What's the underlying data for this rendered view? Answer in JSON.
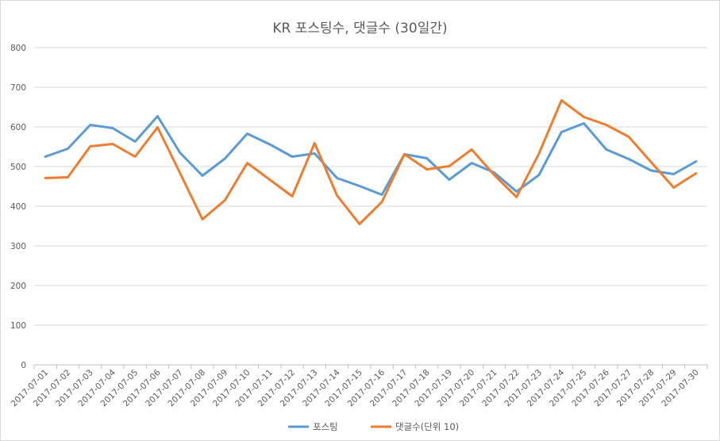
{
  "chart_data": {
    "type": "line",
    "title": "KR 포스팅수, 댓글수 (30일간)",
    "ylim": [
      0,
      800
    ],
    "yticks": [
      0,
      100,
      200,
      300,
      400,
      500,
      600,
      700,
      800
    ],
    "grid": true,
    "legend_position": "bottom",
    "categories": [
      "2017-07-01",
      "2017-07-02",
      "2017-07-03",
      "2017-07-04",
      "2017-07-05",
      "2017-07-06",
      "2017-07-07",
      "2017-07-08",
      "2017-07-09",
      "2017-07-10",
      "2017-07-11",
      "2017-07-12",
      "2017-07-13",
      "2017-07-14",
      "2017-07-15",
      "2017-07-16",
      "2017-07-17",
      "2017-07-18",
      "2017-07-19",
      "2017-07-20",
      "2017-07-21",
      "2017-07-22",
      "2017-07-23",
      "2017-07-24",
      "2017-07-25",
      "2017-07-26",
      "2017-07-27",
      "2017-07-28",
      "2017-07-29",
      "2017-07-30"
    ],
    "series": [
      {
        "name": "포스팅",
        "color": "#5b9bd5",
        "values": [
          525,
          545,
          605,
          597,
          563,
          627,
          535,
          477,
          520,
          583,
          556,
          525,
          533,
          471,
          451,
          429,
          531,
          521,
          467,
          509,
          485,
          437,
          479,
          587,
          609,
          543,
          519,
          490,
          481,
          513
        ]
      },
      {
        "name": "댓글수(단위 10)",
        "color": "#ed7d31",
        "values": [
          471,
          473,
          551,
          557,
          525,
          599,
          484,
          367,
          415,
          509,
          467,
          425,
          559,
          427,
          355,
          411,
          531,
          493,
          501,
          543,
          479,
          423,
          533,
          667,
          625,
          605,
          575,
          511,
          447,
          483
        ]
      }
    ]
  }
}
